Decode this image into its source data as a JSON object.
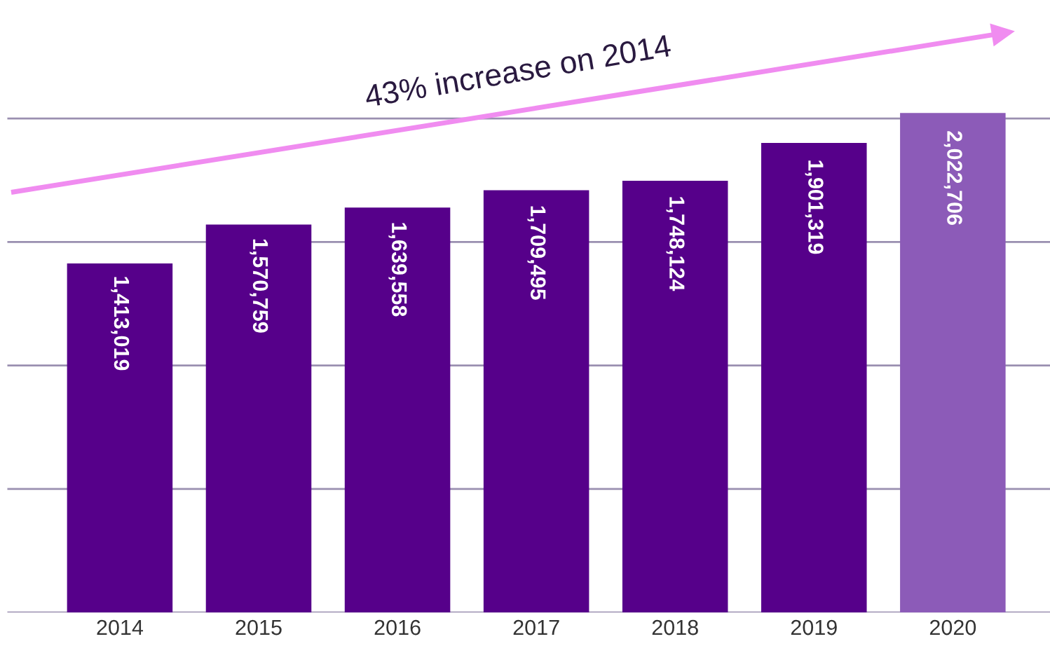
{
  "chart_data": {
    "type": "bar",
    "categories": [
      "2014",
      "2015",
      "2016",
      "2017",
      "2018",
      "2019",
      "2020"
    ],
    "values": [
      1413019,
      1570759,
      1639558,
      1709495,
      1748124,
      1901319,
      2022706
    ],
    "colors": [
      "#56008a",
      "#56008a",
      "#56008a",
      "#56008a",
      "#56008a",
      "#56008a",
      "#8c5bb8"
    ],
    "value_labels": [
      "1,413,019",
      "1,570,759",
      "1,639,558",
      "1,709,495",
      "1,748,124",
      "1,901,319",
      "2,022,706"
    ],
    "yticks": [
      {
        "value": 0,
        "label": null
      },
      {
        "value": 500000,
        "label": null
      },
      {
        "value": 1000000,
        "label": null
      },
      {
        "value": 1500000,
        "label": null
      },
      {
        "value": 2000000,
        "label": null
      }
    ],
    "tick_labels": "x",
    "grid": "y",
    "annotations": [
      "43% increase on 2014"
    ]
  }
}
